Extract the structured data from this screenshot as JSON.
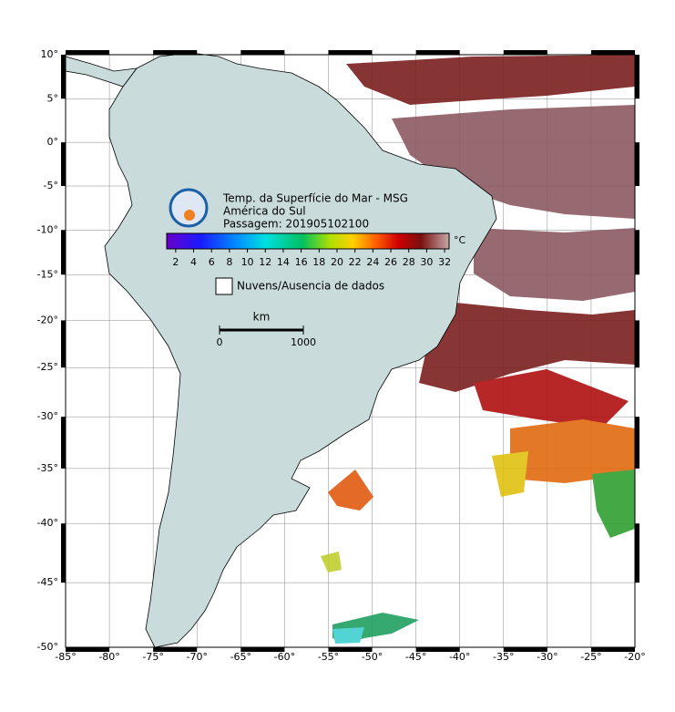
{
  "map": {
    "title": [
      "Temp. da Superfície do Mar - MSG",
      "América do Sul",
      "Passagem: 201905102100"
    ],
    "colorbar": {
      "unit": "°C",
      "lim": [
        1,
        32.5
      ],
      "ticks": [
        2,
        4,
        6,
        8,
        10,
        12,
        14,
        16,
        18,
        20,
        22,
        24,
        26,
        28,
        30,
        32
      ]
    },
    "legend": "Nuvens/Ausencia de dados",
    "scale": {
      "unit": "km",
      "ticks": [
        0,
        1000
      ]
    },
    "lonlim": [
      -85,
      -20
    ],
    "latlim": [
      -50,
      10
    ],
    "lon_ticks": [
      {
        "value": -85,
        "label": "-85°"
      },
      {
        "value": -80,
        "label": "-80°"
      },
      {
        "value": -75,
        "label": "-75°"
      },
      {
        "value": -70,
        "label": "-70°"
      },
      {
        "value": -65,
        "label": "-65°"
      },
      {
        "value": -60,
        "label": "-60°"
      },
      {
        "value": -55,
        "label": "-55°"
      },
      {
        "value": -50,
        "label": "-50°"
      },
      {
        "value": -45,
        "label": "-45°"
      },
      {
        "value": -40,
        "label": "-40°"
      },
      {
        "value": -35,
        "label": "-35°"
      },
      {
        "value": -30,
        "label": "-30°"
      },
      {
        "value": -25,
        "label": "-25°"
      },
      {
        "value": -20,
        "label": "-20°"
      }
    ],
    "lat_ticks": [
      {
        "value": 10,
        "label": "10°"
      },
      {
        "value": 5,
        "label": "5°"
      },
      {
        "value": 0,
        "label": "0°"
      },
      {
        "value": -5,
        "label": "-5°"
      },
      {
        "value": -10,
        "label": "-10°"
      },
      {
        "value": -15,
        "label": "-15°"
      },
      {
        "value": -20,
        "label": "-20°"
      },
      {
        "value": -25,
        "label": "-25°"
      },
      {
        "value": -30,
        "label": "-30°"
      },
      {
        "value": -35,
        "label": "-35°"
      },
      {
        "value": -40,
        "label": "-40°"
      },
      {
        "value": -45,
        "label": "-45°"
      },
      {
        "value": -50,
        "label": "-50°"
      }
    ]
  }
}
